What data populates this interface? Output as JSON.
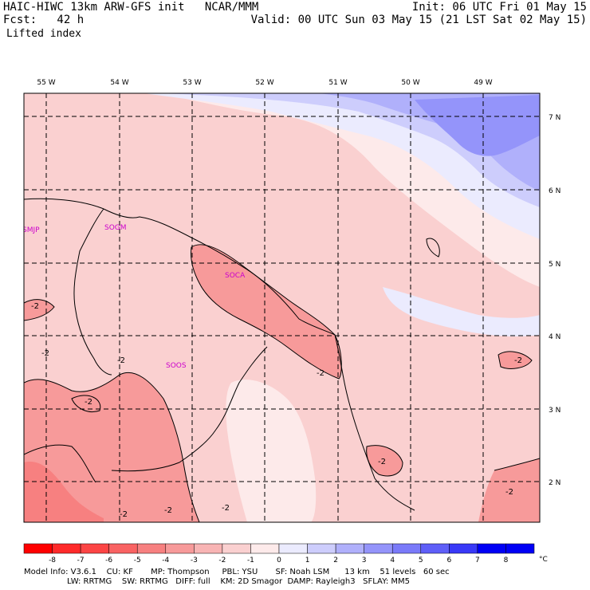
{
  "header": {
    "model_line": "HAIC-HIWC 13km ARW-GFS init   NCAR/MMM",
    "init": "Init: 06 UTC Fri 01 May 15",
    "fcst": "Fcst:   42 h",
    "valid": "Valid: 00 UTC Sun 03 May 15 (21 LST Sat 02 May 15)",
    "field": "Lifted index"
  },
  "map": {
    "lon_labels": [
      "55 W",
      "54 W",
      "53 W",
      "52 W",
      "51 W",
      "50 W",
      "49 W"
    ],
    "lat_labels": [
      "7 N",
      "6 N",
      "5 N",
      "4 N",
      "3 N",
      "2 N"
    ],
    "stations": [
      "SMJP",
      "SOGM",
      "SOCA",
      "SOOS"
    ],
    "contour_labels": [
      "-2",
      "-2",
      "-2",
      "-2",
      "-2",
      "-2",
      "-2",
      "-2",
      "-2",
      "-2",
      "-2"
    ]
  },
  "colorbar": {
    "ticks": [
      "-8",
      "-7",
      "-6",
      "-5",
      "-4",
      "-3",
      "-2",
      "-1",
      "0",
      "1",
      "2",
      "3",
      "4",
      "5",
      "6",
      "7",
      "8"
    ],
    "unit": "°C",
    "colors": [
      "#ff0000",
      "#ff2a2a",
      "#fc4545",
      "#f96363",
      "#f78080",
      "#f79a9a",
      "#f8b4b4",
      "#fad0d0",
      "#fdeaea",
      "#ebebfe",
      "#cdcdfc",
      "#b0b0fb",
      "#9494fa",
      "#7a7af9",
      "#5f5ff8",
      "#3939f7",
      "#0000f5"
    ]
  },
  "footer": {
    "line1": "Model Info: V3.6.1    CU: KF       MP: Thompson     PBL: YSU       SF: Noah LSM      13 km    51 levels   60 sec",
    "line2": "                 LW: RRTMG    SW: RRTMG   DIFF: full    KM: 2D Smagor  DAMP: Rayleigh3   SFLAY: MM5"
  }
}
